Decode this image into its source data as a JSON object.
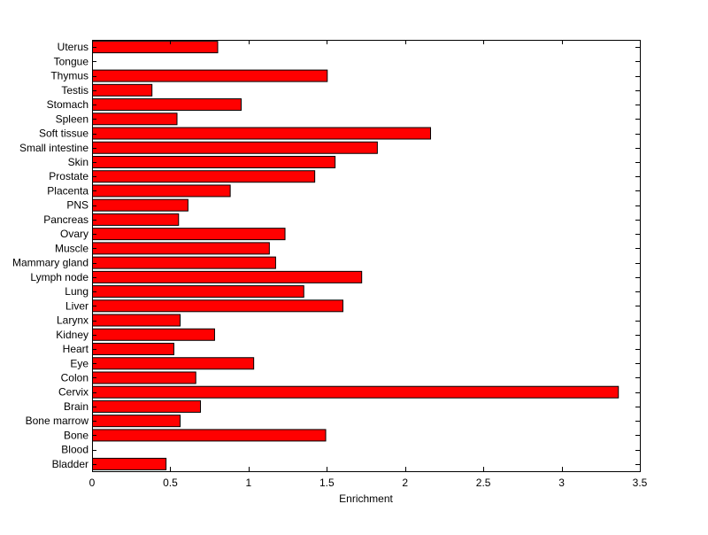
{
  "chart_data": {
    "type": "bar",
    "orientation": "horizontal",
    "xlabel": "Enrichment",
    "ylabel": "",
    "title": "",
    "xlim": [
      0,
      3.5
    ],
    "xticks": [
      "0",
      "0.5",
      "1",
      "1.5",
      "2",
      "2.5",
      "3",
      "3.5"
    ],
    "grid": false,
    "bar_color": "#ff0000",
    "edge_color": "#000000",
    "categories": [
      "Bladder",
      "Blood",
      "Bone",
      "Bone marrow",
      "Brain",
      "Cervix",
      "Colon",
      "Eye",
      "Heart",
      "Kidney",
      "Larynx",
      "Liver",
      "Lung",
      "Lymph node",
      "Mammary gland",
      "Muscle",
      "Ovary",
      "Pancreas",
      "PNS",
      "Placenta",
      "Prostate",
      "Skin",
      "Small intestine",
      "Soft tissue",
      "Spleen",
      "Stomach",
      "Testis",
      "Thymus",
      "Tongue",
      "Uterus"
    ],
    "values": [
      0.47,
      0,
      1.49,
      0.56,
      0.69,
      3.36,
      0.66,
      1.03,
      0.52,
      0.78,
      0.56,
      1.6,
      1.35,
      1.72,
      1.17,
      1.13,
      1.23,
      0.55,
      0.61,
      0.88,
      1.42,
      1.55,
      1.82,
      2.16,
      0.54,
      0.95,
      0.38,
      1.5,
      0,
      0.8
    ]
  }
}
